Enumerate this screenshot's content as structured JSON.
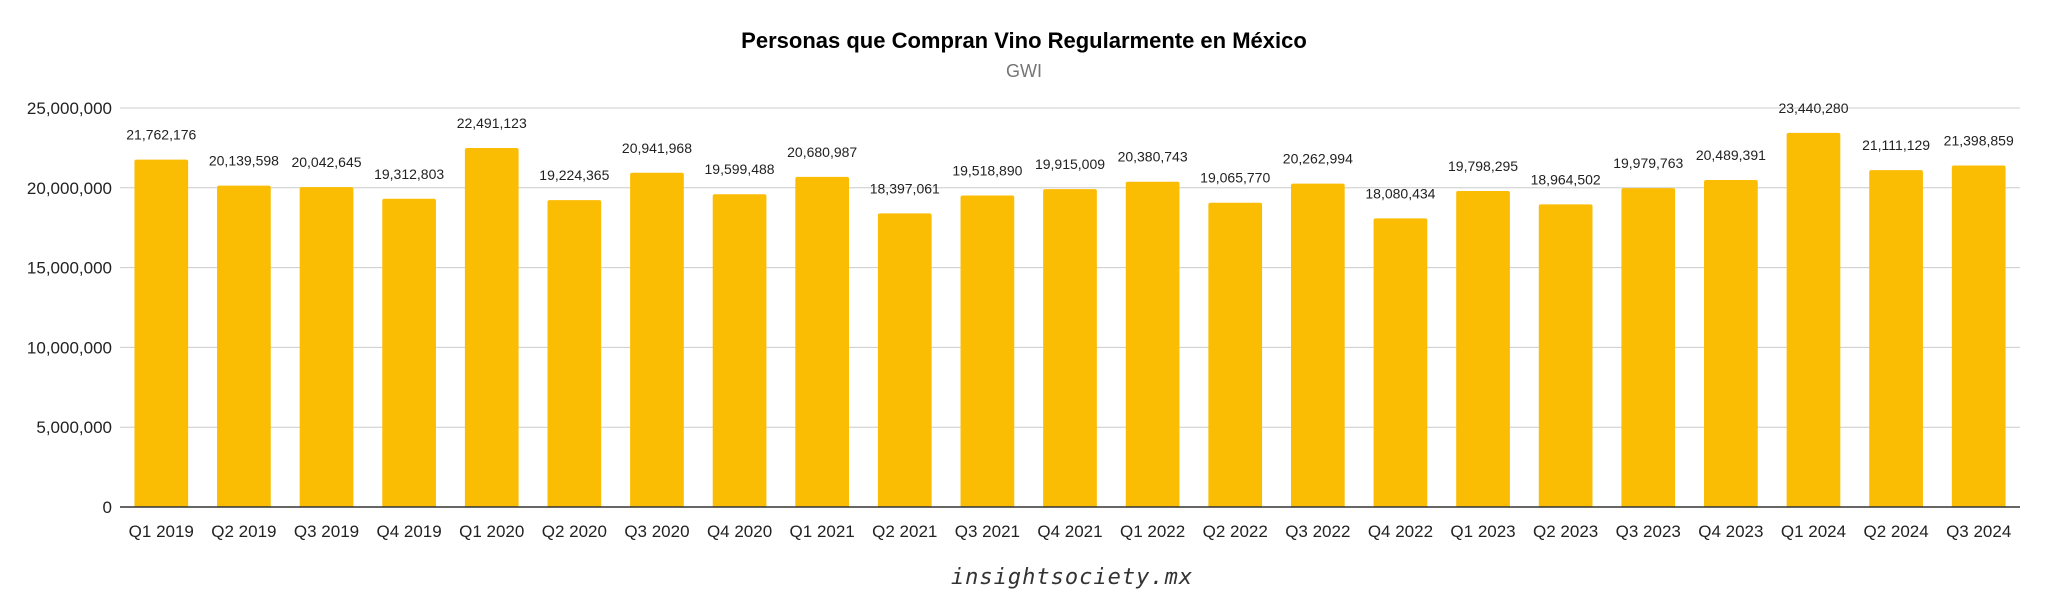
{
  "chart_data": {
    "type": "bar",
    "title": "Personas que Compran Vino Regularmente en México",
    "subtitle": "GWI",
    "xlabel": "",
    "ylabel": "",
    "ylim": [
      0,
      25000000
    ],
    "yticks": [
      0,
      5000000,
      10000000,
      15000000,
      20000000,
      25000000
    ],
    "ytick_labels": [
      "0",
      "5,000,000",
      "10,000,000",
      "15,000,000",
      "20,000,000",
      "25,000,000"
    ],
    "grid": true,
    "legend": "none",
    "bar_color": "#FBBC04",
    "categories": [
      "Q1 2019",
      "Q2 2019",
      "Q3 2019",
      "Q4 2019",
      "Q1 2020",
      "Q2 2020",
      "Q3 2020",
      "Q4 2020",
      "Q1 2021",
      "Q2 2021",
      "Q3 2021",
      "Q4 2021",
      "Q1 2022",
      "Q2 2022",
      "Q3 2022",
      "Q4 2022",
      "Q1 2023",
      "Q2 2023",
      "Q3 2023",
      "Q4 2023",
      "Q1 2024",
      "Q2 2024",
      "Q3 2024"
    ],
    "values": [
      21762176,
      20139598,
      20042645,
      19312803,
      22491123,
      19224365,
      20941968,
      19599488,
      20680987,
      18397061,
      19518890,
      19915009,
      20380743,
      19065770,
      20262994,
      18080434,
      19798295,
      18964502,
      19979763,
      20489391,
      23440280,
      21111129,
      21398859
    ],
    "value_labels": [
      "21,762,176",
      "20,139,598",
      "20,042,645",
      "19,312,803",
      "22,491,123",
      "19,224,365",
      "20,941,968",
      "19,599,488",
      "20,680,987",
      "18,397,061",
      "19,518,890",
      "19,915,009",
      "20,380,743",
      "19,065,770",
      "20,262,994",
      "18,080,434",
      "19,798,295",
      "18,964,502",
      "19,979,763",
      "20,489,391",
      "23,440,280",
      "21,111,129",
      "21,398,859"
    ]
  },
  "footer": {
    "watermark": "insightsociety.mx"
  }
}
